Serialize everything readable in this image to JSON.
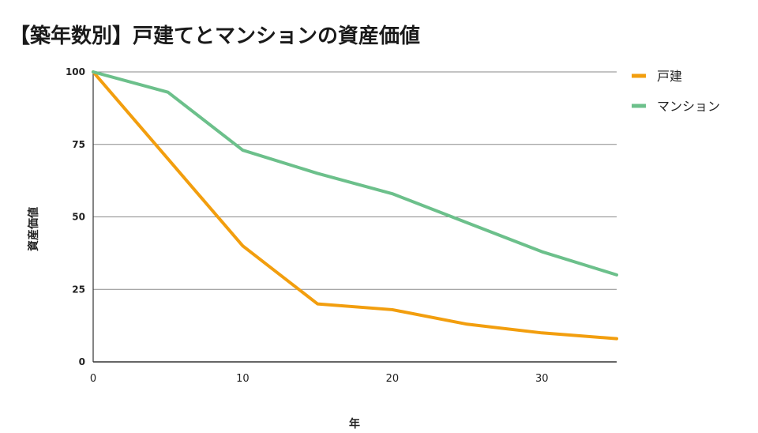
{
  "chart_data": {
    "type": "line",
    "title": "【築年数別】戸建てとマンションの資産価値",
    "xlabel": "年",
    "ylabel": "資産価値",
    "xlim": [
      0,
      35
    ],
    "ylim": [
      0,
      100
    ],
    "x_ticks": [
      0,
      10,
      20,
      30
    ],
    "y_ticks": [
      0,
      25,
      50,
      75,
      100
    ],
    "x": [
      0,
      5,
      10,
      15,
      20,
      25,
      30,
      35
    ],
    "series": [
      {
        "name": "戸建",
        "color": "#f29e0e",
        "values": [
          100,
          70,
          40,
          20,
          18,
          13,
          10,
          8
        ]
      },
      {
        "name": "マンション",
        "color": "#6cc08b",
        "values": [
          100,
          93,
          73,
          65,
          58,
          48,
          38,
          30
        ]
      }
    ],
    "grid": true,
    "legend_position": "right"
  }
}
